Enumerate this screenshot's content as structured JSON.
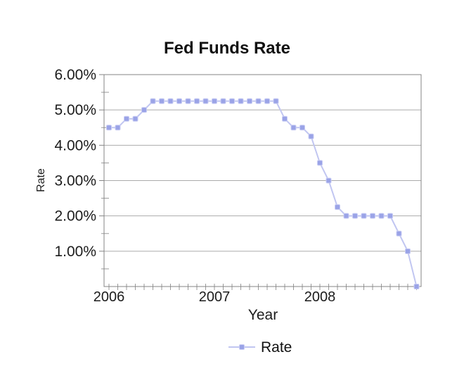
{
  "page": {
    "background": "#ffffff"
  },
  "chart_data": {
    "type": "line",
    "title": "Fed Funds Rate",
    "xlabel": "Year",
    "ylabel": "Rate",
    "legend": {
      "position": "bottom",
      "entries": [
        "Rate"
      ]
    },
    "x_resolution": "monthly",
    "x_range": [
      "2006-01",
      "2008-12"
    ],
    "x_tick_labels": [
      "2006",
      "2007",
      "2008"
    ],
    "x_tick_month_index": [
      0,
      12,
      24
    ],
    "y_tick_labels": [
      "6.00%",
      "5.00%",
      "4.00%",
      "3.00%",
      "2.00%",
      "1.00%"
    ],
    "y_tick_values": [
      6,
      5,
      4,
      3,
      2,
      1
    ],
    "ylim": [
      0,
      6
    ],
    "y_minor_step": 0.5,
    "grid": "horizontal-major",
    "series": [
      {
        "name": "Rate",
        "marker": "square",
        "months": [
          "2006-01",
          "2006-02",
          "2006-03",
          "2006-04",
          "2006-05",
          "2006-06",
          "2006-07",
          "2006-08",
          "2006-09",
          "2006-10",
          "2006-11",
          "2006-12",
          "2007-01",
          "2007-02",
          "2007-03",
          "2007-04",
          "2007-05",
          "2007-06",
          "2007-07",
          "2007-08",
          "2007-09",
          "2007-10",
          "2007-11",
          "2007-12",
          "2008-01",
          "2008-02",
          "2008-03",
          "2008-04",
          "2008-05",
          "2008-06",
          "2008-07",
          "2008-08",
          "2008-09",
          "2008-10",
          "2008-11",
          "2008-12"
        ],
        "values": [
          4.5,
          4.5,
          4.75,
          4.75,
          5.0,
          5.25,
          5.25,
          5.25,
          5.25,
          5.25,
          5.25,
          5.25,
          5.25,
          5.25,
          5.25,
          5.25,
          5.25,
          5.25,
          5.25,
          5.25,
          4.75,
          4.5,
          4.5,
          4.25,
          3.5,
          3.0,
          2.25,
          2.0,
          2.0,
          2.0,
          2.0,
          2.0,
          2.0,
          1.5,
          1.0,
          0.0
        ]
      }
    ],
    "colors": {
      "series_marker": "#9aa3e7",
      "series_marker_edge": "#c9cdf4",
      "series_line": "#c1c6f1",
      "grid": "#ababab",
      "axis_border": "#848484",
      "tick": "#9a9a9a",
      "text": "#111111"
    }
  }
}
